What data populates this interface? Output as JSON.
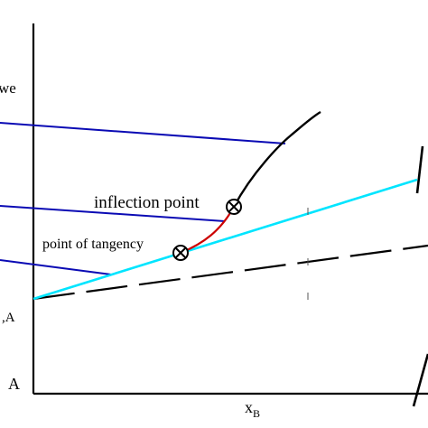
{
  "diagram": {
    "labels": {
      "inflection": "inflection point",
      "tangency": "point of tangency",
      "y_top_fragment": "we",
      "y_mid_fragment": ",A",
      "y_origin_fragment": "A",
      "x_axis_main": "x",
      "x_axis_sub": "B"
    },
    "colors": {
      "axis": "#000000",
      "curve": "#000000",
      "curve_segment_between_points": "#cc0000",
      "tangent_line": "#00e5ff",
      "leader_lines": "#0a0ab4",
      "dashed_line": "#000000"
    },
    "markers": [
      "inflection-point-marker",
      "tangency-point-marker"
    ]
  }
}
